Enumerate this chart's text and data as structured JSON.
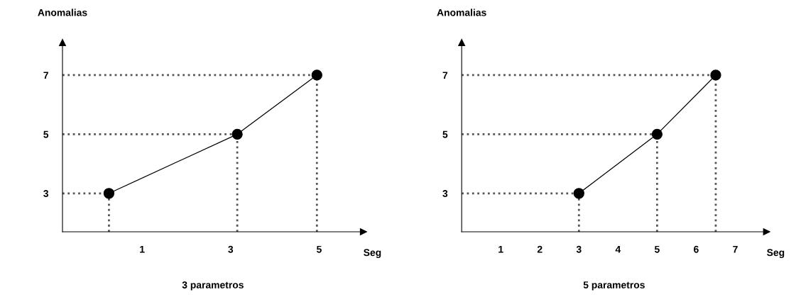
{
  "chart_data": [
    {
      "type": "line",
      "title": "3 parametros",
      "xlabel": "Seg",
      "ylabel": "Anomalias",
      "x": [
        0.25,
        3.15,
        4.95
      ],
      "series": [
        {
          "color": "#000000",
          "values": [
            3,
            5,
            7
          ]
        },
        {
          "color": "#555555",
          "line_style": "dotted",
          "marker": "none",
          "x": [
            -0.8,
            0.25
          ],
          "values": [
            3,
            3
          ]
        },
        {
          "color": "#555555",
          "line_style": "dotted",
          "marker": "none",
          "x": [
            -0.8,
            3.15
          ],
          "values": [
            5,
            5
          ]
        },
        {
          "color": "#555555",
          "line_style": "dotted",
          "marker": "none",
          "x": [
            -0.8,
            4.95
          ],
          "values": [
            7,
            7
          ]
        },
        {
          "color": "#555555",
          "line_style": "dotted",
          "marker": "none",
          "x": [
            0.25,
            0.25
          ],
          "values": [
            1.7,
            3
          ]
        },
        {
          "color": "#555555",
          "line_style": "dotted",
          "marker": "none",
          "x": [
            3.15,
            3.15
          ],
          "values": [
            1.7,
            5
          ]
        },
        {
          "color": "#555555",
          "line_style": "dotted",
          "marker": "none",
          "x": [
            4.95,
            4.95
          ],
          "values": [
            1.7,
            7
          ]
        }
      ],
      "xlim": [
        -0.8,
        6
      ],
      "xticks": [
        1,
        3,
        5
      ],
      "ylim": [
        1.7,
        8.1
      ],
      "yticks": [
        3,
        5,
        7
      ],
      "marker": "circle",
      "line_style": "solid"
    },
    {
      "type": "line",
      "title": "5 parametros",
      "xlabel": "Seg",
      "ylabel": "Anomalias",
      "x": [
        3,
        5,
        6.5
      ],
      "series": [
        {
          "color": "#000000",
          "values": [
            3,
            5,
            7
          ]
        },
        {
          "color": "#555555",
          "line_style": "dotted",
          "marker": "none",
          "x": [
            0,
            3
          ],
          "values": [
            3,
            3
          ]
        },
        {
          "color": "#555555",
          "line_style": "dotted",
          "marker": "none",
          "x": [
            0,
            5
          ],
          "values": [
            5,
            5
          ]
        },
        {
          "color": "#555555",
          "line_style": "dotted",
          "marker": "none",
          "x": [
            0,
            6.5
          ],
          "values": [
            7,
            7
          ]
        },
        {
          "color": "#555555",
          "line_style": "dotted",
          "marker": "none",
          "x": [
            3,
            3
          ],
          "values": [
            1.7,
            3
          ]
        },
        {
          "color": "#555555",
          "line_style": "dotted",
          "marker": "none",
          "x": [
            5,
            5
          ],
          "values": [
            1.7,
            5
          ]
        },
        {
          "color": "#555555",
          "line_style": "dotted",
          "marker": "none",
          "x": [
            6.5,
            6.5
          ],
          "values": [
            1.7,
            7
          ]
        }
      ],
      "xlim": [
        0,
        7.8
      ],
      "xticks": [
        1,
        2,
        3,
        4,
        5,
        6,
        7
      ],
      "ylim": [
        1.7,
        8.1
      ],
      "yticks": [
        3,
        5,
        7
      ],
      "marker": "circle",
      "line_style": "solid"
    }
  ]
}
